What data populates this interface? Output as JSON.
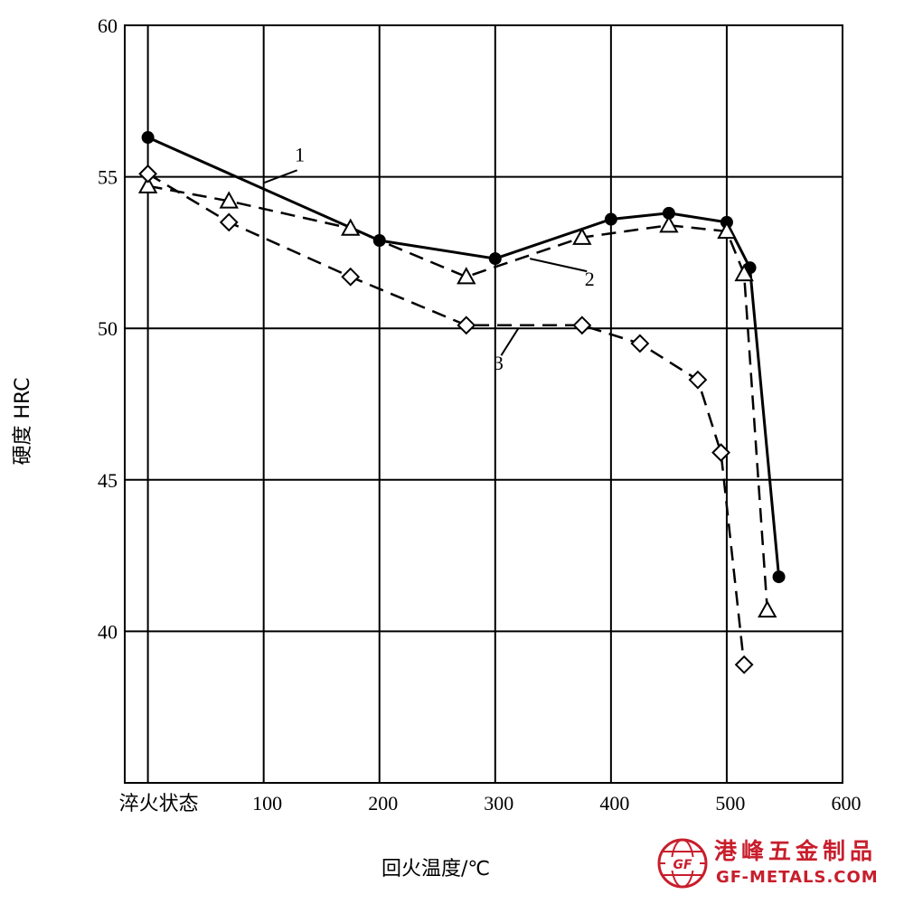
{
  "chart_data": {
    "type": "line",
    "title": "",
    "xlabel": "回火温度/℃",
    "ylabel": "硬度 HRC",
    "xlim": [
      -20,
      600
    ],
    "ylim": [
      35,
      60
    ],
    "x_ticks": [
      {
        "value": 0,
        "label": "淬火状态"
      },
      {
        "value": 100,
        "label": "100"
      },
      {
        "value": 200,
        "label": "200"
      },
      {
        "value": 300,
        "label": "300"
      },
      {
        "value": 400,
        "label": "400"
      },
      {
        "value": 500,
        "label": "500"
      },
      {
        "value": 600,
        "label": "600"
      }
    ],
    "y_ticks": [
      40,
      45,
      50,
      55,
      60
    ],
    "grid": true,
    "series": [
      {
        "name": "1",
        "style": "solid",
        "marker": "filled-circle",
        "points": [
          [
            0,
            56.3
          ],
          [
            200,
            52.9
          ],
          [
            300,
            52.3
          ],
          [
            400,
            53.6
          ],
          [
            450,
            53.8
          ],
          [
            500,
            53.5
          ],
          [
            520,
            52.0
          ],
          [
            545,
            41.8
          ]
        ]
      },
      {
        "name": "2",
        "style": "dashed",
        "marker": "open-triangle",
        "points": [
          [
            0,
            54.7
          ],
          [
            70,
            54.2
          ],
          [
            175,
            53.3
          ],
          [
            275,
            51.7
          ],
          [
            375,
            53.0
          ],
          [
            450,
            53.4
          ],
          [
            500,
            53.2
          ],
          [
            515,
            51.8
          ],
          [
            535,
            40.7
          ]
        ]
      },
      {
        "name": "3",
        "style": "dashed",
        "marker": "open-diamond",
        "points": [
          [
            0,
            55.1
          ],
          [
            70,
            53.5
          ],
          [
            175,
            51.7
          ],
          [
            275,
            50.1
          ],
          [
            375,
            50.1
          ],
          [
            425,
            49.5
          ],
          [
            475,
            48.3
          ],
          [
            495,
            45.9
          ],
          [
            515,
            38.9
          ]
        ]
      }
    ],
    "annotations": [
      "1",
      "2",
      "3"
    ]
  },
  "watermark": {
    "cn": "港峰五金制品",
    "url": "GF-METALS.COM",
    "logo_text": "GF",
    "color": "#c81e2c"
  }
}
